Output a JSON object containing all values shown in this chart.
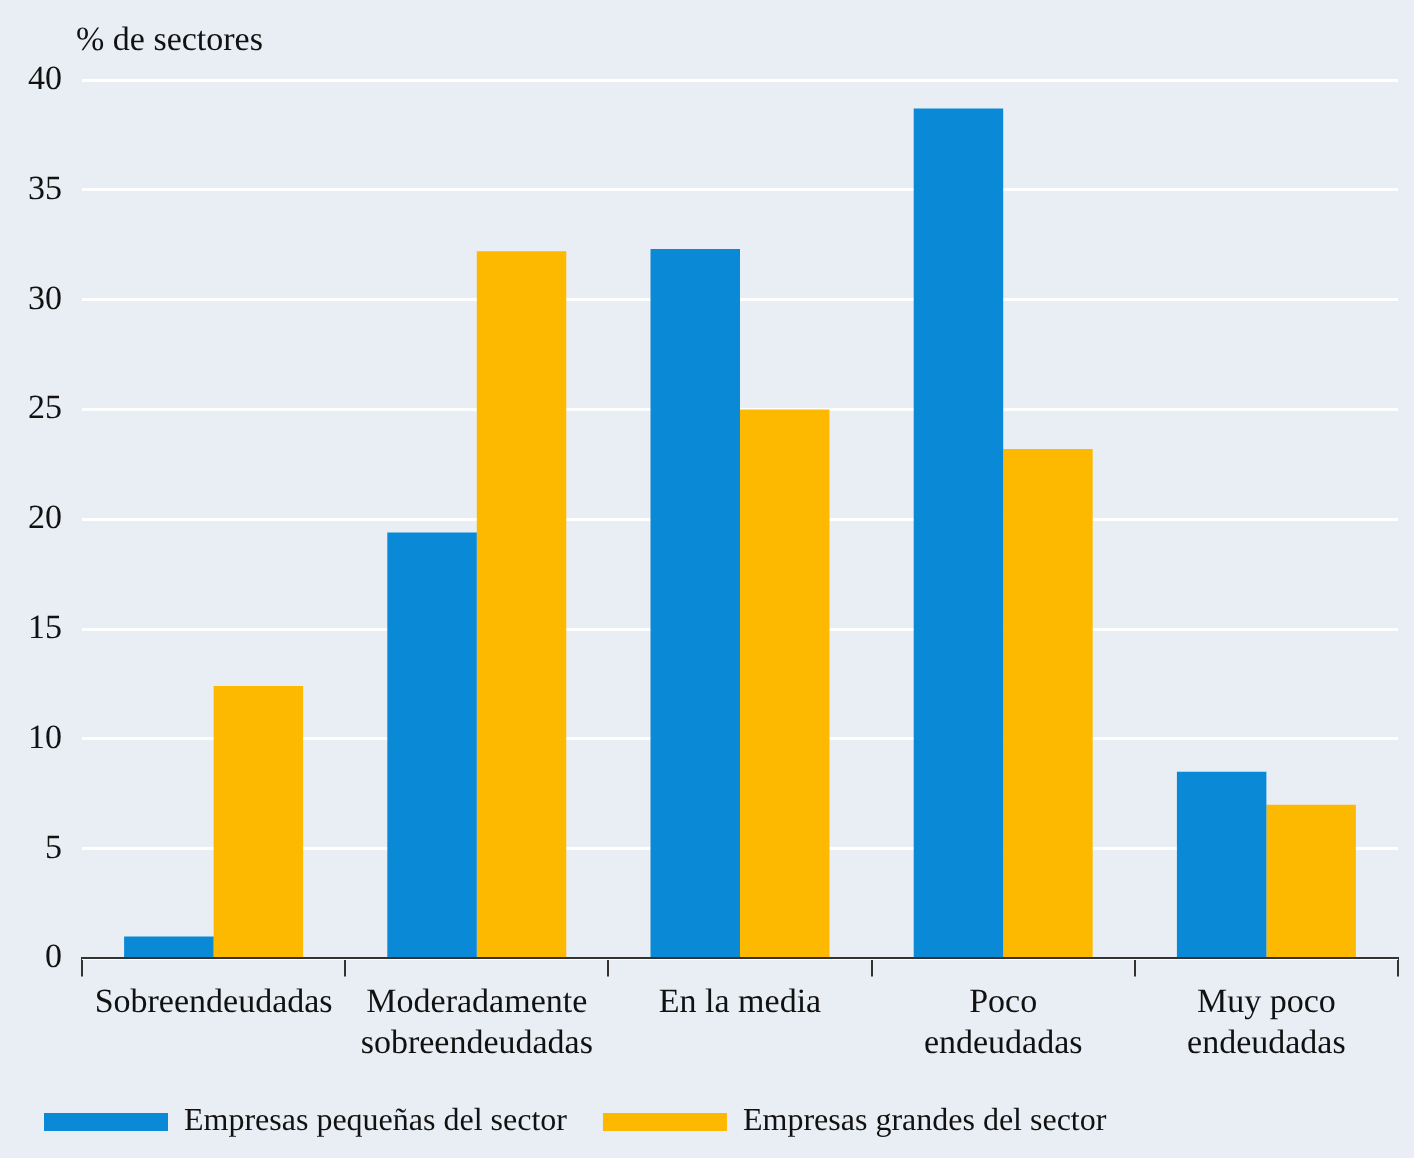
{
  "chart_data": {
    "type": "bar",
    "ylabel": "% de sectores",
    "categories": [
      "Sobreendeudadas",
      "Moderadamente\nsobreendeudadas",
      "En la media",
      "Poco\nendeudadas",
      "Muy poco\nendeudadas"
    ],
    "series": [
      {
        "name": "Empresas pequeñas del sector",
        "color": "#0a8ad6",
        "values": [
          1.0,
          19.4,
          32.3,
          38.7,
          8.5
        ]
      },
      {
        "name": "Empresas grandes del sector",
        "color": "#fdb900",
        "values": [
          12.4,
          32.2,
          25.0,
          23.2,
          7.0
        ]
      }
    ],
    "ylim": [
      0,
      40
    ],
    "yticks": [
      0,
      5,
      10,
      15,
      20,
      25,
      30,
      35,
      40
    ],
    "grid": "y",
    "legend": "bottom"
  }
}
